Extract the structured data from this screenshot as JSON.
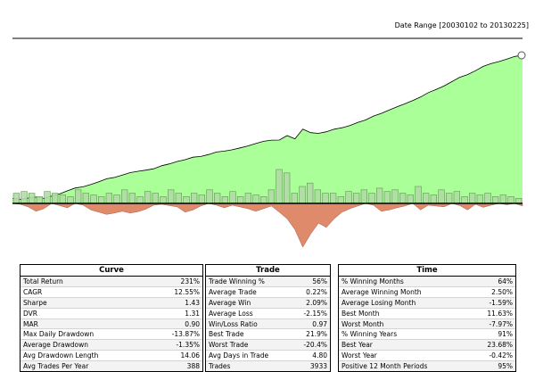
{
  "date_range": "Date Range [20030102 to 20130225]",
  "colors": {
    "equity_fill": "#aaff99",
    "equity_line": "#000000",
    "drawdown_fill": "#e08a6c",
    "monthly_bar_fill": "#b3d9a8",
    "monthly_bar_stroke": "#5a9a4a",
    "zero_line": "#000000"
  },
  "chart_data": {
    "type": "area",
    "equity_curve": [
      0.034,
      0.028,
      0.036,
      0.043,
      0.034,
      0.05,
      0.064,
      0.085,
      0.104,
      0.112,
      0.128,
      0.146,
      0.166,
      0.175,
      0.191,
      0.208,
      0.217,
      0.225,
      0.234,
      0.254,
      0.267,
      0.283,
      0.295,
      0.312,
      0.317,
      0.33,
      0.347,
      0.353,
      0.362,
      0.375,
      0.388,
      0.404,
      0.419,
      0.427,
      0.428,
      0.458,
      0.436,
      0.501,
      0.478,
      0.473,
      0.484,
      0.501,
      0.511,
      0.525,
      0.547,
      0.563,
      0.59,
      0.608,
      0.63,
      0.652,
      0.672,
      0.694,
      0.718,
      0.748,
      0.769,
      0.793,
      0.822,
      0.852,
      0.87,
      0.896,
      0.925,
      0.944,
      0.958,
      0.975,
      0.992,
      1.0
    ],
    "drawdown": [
      0,
      -0.02,
      -0.08,
      -0.18,
      -0.12,
      0,
      -0.05,
      -0.1,
      0,
      -0.04,
      -0.15,
      -0.2,
      -0.25,
      -0.22,
      -0.18,
      -0.22,
      -0.19,
      -0.13,
      -0.04,
      -0.02,
      -0.05,
      -0.08,
      -0.2,
      -0.15,
      -0.06,
      0,
      -0.04,
      -0.1,
      -0.04,
      -0.08,
      -0.12,
      -0.18,
      -0.12,
      -0.06,
      -0.2,
      -0.35,
      -0.6,
      -1.0,
      -0.7,
      -0.45,
      -0.55,
      -0.35,
      -0.2,
      -0.12,
      -0.06,
      0,
      -0.04,
      -0.18,
      -0.15,
      -0.1,
      -0.06,
      0,
      -0.15,
      -0.04,
      -0.06,
      -0.08,
      0,
      -0.05,
      -0.15,
      -0.02,
      -0.09,
      -0.04,
      0,
      -0.03,
      0,
      -0.06
    ],
    "monthly_returns": [
      0.3,
      0.35,
      0.3,
      0.2,
      0.35,
      0.3,
      0.25,
      0.2,
      0.4,
      0.3,
      0.25,
      0.2,
      0.3,
      0.25,
      0.4,
      0.3,
      0.2,
      0.35,
      0.3,
      0.2,
      0.4,
      0.3,
      0.2,
      0.3,
      0.25,
      0.4,
      0.3,
      0.2,
      0.35,
      0.2,
      0.3,
      0.25,
      0.2,
      0.4,
      1.0,
      0.9,
      0.3,
      0.5,
      0.6,
      0.4,
      0.3,
      0.3,
      0.2,
      0.35,
      0.3,
      0.4,
      0.3,
      0.45,
      0.35,
      0.4,
      0.3,
      0.25,
      0.5,
      0.3,
      0.25,
      0.4,
      0.3,
      0.35,
      0.2,
      0.3,
      0.25,
      0.3,
      0.2,
      0.25,
      0.2,
      0.15
    ]
  },
  "tables": {
    "curve": {
      "title": "Curve",
      "rows": [
        {
          "label": "Total Return",
          "value": "231%"
        },
        {
          "label": "CAGR",
          "value": "12.55%"
        },
        {
          "label": "Sharpe",
          "value": "1.43"
        },
        {
          "label": "DVR",
          "value": "1.31"
        },
        {
          "label": "MAR",
          "value": "0.90"
        },
        {
          "label": "Max Daily Drawdown",
          "value": "-13.87%"
        },
        {
          "label": "Average Drawdown",
          "value": "-1.35%"
        },
        {
          "label": "Avg Drawdown Length",
          "value": "14.06"
        },
        {
          "label": "Avg Trades Per Year",
          "value": "388"
        }
      ]
    },
    "trade": {
      "title": "Trade",
      "rows": [
        {
          "label": "Trade Winning %",
          "value": "56%"
        },
        {
          "label": "Average Trade",
          "value": "0.22%"
        },
        {
          "label": "Average Win",
          "value": "2.09%"
        },
        {
          "label": "Average Loss",
          "value": "-2.15%"
        },
        {
          "label": "Win/Loss Ratio",
          "value": "0.97"
        },
        {
          "label": "Best Trade",
          "value": "21.9%"
        },
        {
          "label": "Worst Trade",
          "value": "-20.4%"
        },
        {
          "label": "Avg Days in Trade",
          "value": "4.80"
        },
        {
          "label": "Trades",
          "value": "3933"
        }
      ]
    },
    "time": {
      "title": "Time",
      "rows": [
        {
          "label": "% Winning Months",
          "value": "64%"
        },
        {
          "label": "Average Winning Month",
          "value": "2.50%"
        },
        {
          "label": "Average Losing Month",
          "value": "-1.59%"
        },
        {
          "label": "Best Month",
          "value": "11.63%"
        },
        {
          "label": "Worst Month",
          "value": "-7.97%"
        },
        {
          "label": "% Winning Years",
          "value": "91%"
        },
        {
          "label": "Best Year",
          "value": "23.68%"
        },
        {
          "label": "Worst Year",
          "value": "-0.42%"
        },
        {
          "label": "Positive 12 Month Periods",
          "value": "95%"
        }
      ]
    }
  }
}
